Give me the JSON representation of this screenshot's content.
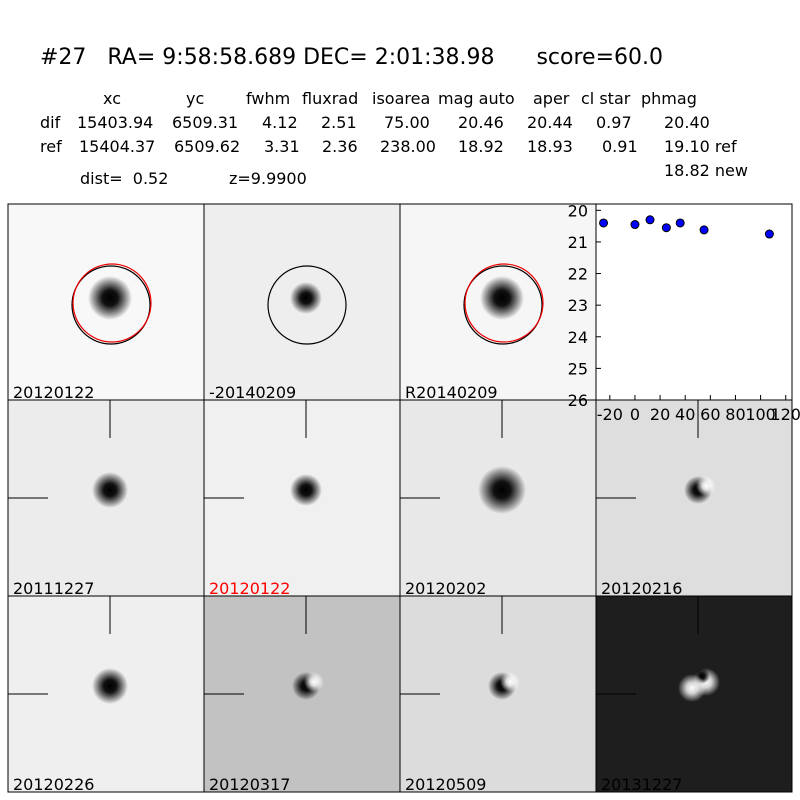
{
  "header": {
    "title": "#27   RA= 9:58:58.689 DEC= 2:01:38.98      score=60.0"
  },
  "table": {
    "columns": [
      "xc",
      "yc",
      "fwhm",
      "fluxrad",
      "isoarea",
      "mag auto",
      "aper",
      "cl star",
      "phmag"
    ],
    "rows": [
      {
        "label": "dif",
        "cells": [
          "15403.94",
          "6509.31",
          "4.12",
          "2.51",
          "75.00",
          "20.46",
          "20.44",
          "0.97",
          "20.40"
        ]
      },
      {
        "label": "ref",
        "cells": [
          "15404.37",
          "6509.62",
          "3.31",
          "2.36",
          "238.00",
          "18.92",
          "18.93",
          "0.91",
          "19.10 ref"
        ]
      }
    ],
    "extra": "18.82 new",
    "dist": "dist=  0.52",
    "z": "z=9.9900"
  },
  "panels": [
    {
      "label": "20120122",
      "color": "#000000"
    },
    {
      "label": "-20140209",
      "color": "#000000"
    },
    {
      "label": "R20140209",
      "color": "#000000"
    },
    {
      "label": "20111227",
      "color": "#000000"
    },
    {
      "label": "20120122",
      "color": "#ff0000"
    },
    {
      "label": "20120202",
      "color": "#000000"
    },
    {
      "label": "20120216",
      "color": "#000000"
    },
    {
      "label": "20120226",
      "color": "#000000"
    },
    {
      "label": "20120317",
      "color": "#000000"
    },
    {
      "label": "20120509",
      "color": "#000000"
    },
    {
      "label": "20131227",
      "color": "#000000"
    }
  ],
  "chart_data": {
    "type": "scatter",
    "x": [
      -25,
      0,
      12,
      25,
      36,
      55,
      107
    ],
    "values": [
      20.4,
      20.45,
      20.3,
      20.55,
      20.4,
      20.62,
      20.75
    ],
    "color": "#0000ff",
    "xlim": [
      -31,
      125
    ],
    "ylim": [
      26,
      19.8
    ],
    "xticks": [
      -20,
      0,
      20,
      40,
      60,
      80,
      100,
      120
    ],
    "yticks": [
      20,
      21,
      22,
      23,
      24,
      25,
      26
    ]
  }
}
